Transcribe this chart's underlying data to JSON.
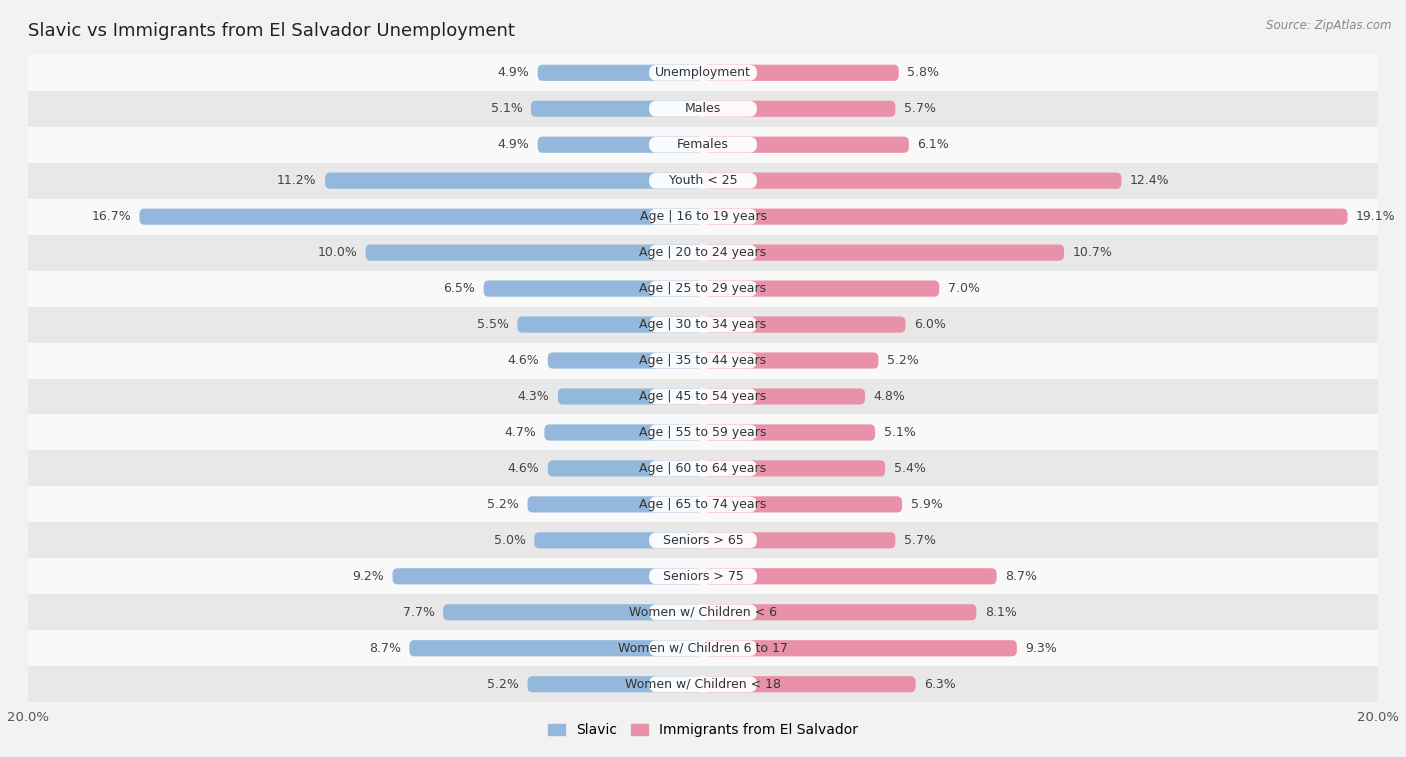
{
  "title": "Slavic vs Immigrants from El Salvador Unemployment",
  "source": "Source: ZipAtlas.com",
  "categories": [
    "Unemployment",
    "Males",
    "Females",
    "Youth < 25",
    "Age | 16 to 19 years",
    "Age | 20 to 24 years",
    "Age | 25 to 29 years",
    "Age | 30 to 34 years",
    "Age | 35 to 44 years",
    "Age | 45 to 54 years",
    "Age | 55 to 59 years",
    "Age | 60 to 64 years",
    "Age | 65 to 74 years",
    "Seniors > 65",
    "Seniors > 75",
    "Women w/ Children < 6",
    "Women w/ Children 6 to 17",
    "Women w/ Children < 18"
  ],
  "slavic_values": [
    4.9,
    5.1,
    4.9,
    11.2,
    16.7,
    10.0,
    6.5,
    5.5,
    4.6,
    4.3,
    4.7,
    4.6,
    5.2,
    5.0,
    9.2,
    7.7,
    8.7,
    5.2
  ],
  "elsalvador_values": [
    5.8,
    5.7,
    6.1,
    12.4,
    19.1,
    10.7,
    7.0,
    6.0,
    5.2,
    4.8,
    5.1,
    5.4,
    5.9,
    5.7,
    8.7,
    8.1,
    9.3,
    6.3
  ],
  "slavic_color": "#93b8db",
  "elsalvador_color": "#e891a8",
  "bar_height": 0.45,
  "xlim": 20.0,
  "legend_slavic": "Slavic",
  "legend_elsalvador": "Immigrants from El Salvador",
  "bg_color": "#f2f2f2",
  "row_light": "#f9f9f9",
  "row_dark": "#e8e8e8",
  "title_fontsize": 13,
  "label_fontsize": 9,
  "value_fontsize": 9
}
